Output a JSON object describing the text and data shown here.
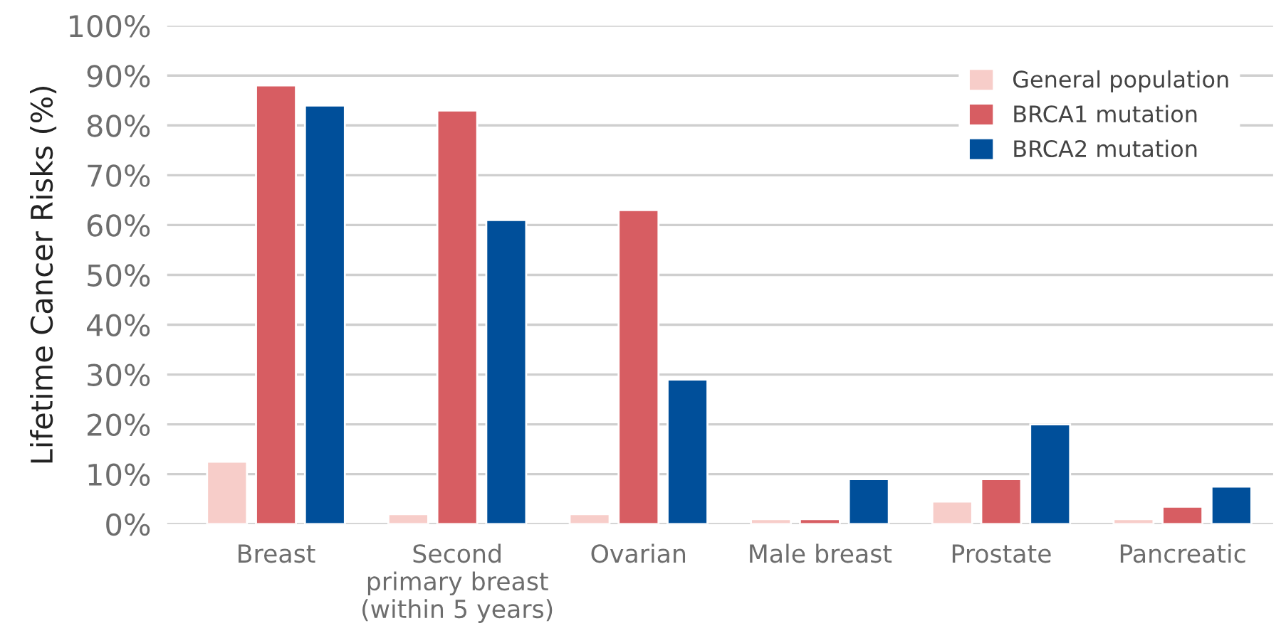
{
  "chart_data": {
    "type": "bar",
    "ylabel": "Lifetime Cancer Risks (%)",
    "categories": [
      "Breast",
      "Second\nprimary breast\n(within 5 years)",
      "Ovarian",
      "Male breast",
      "Prostate",
      "Pancreatic"
    ],
    "series": [
      {
        "name": "General population",
        "color": "#f7cdc9",
        "values": [
          12.5,
          2,
          2,
          1,
          4.5,
          1
        ]
      },
      {
        "name": "BRCA1 mutation",
        "color": "#d75d62",
        "values": [
          88,
          83,
          63,
          1,
          9,
          3.5
        ]
      },
      {
        "name": "BRCA2 mutation",
        "color": "#004f9a",
        "values": [
          84,
          61,
          29,
          9,
          20,
          7.5
        ]
      }
    ],
    "ylim": [
      0,
      100
    ],
    "yticks": [
      {
        "value": 0,
        "label": "0%"
      },
      {
        "value": 10,
        "label": "10%"
      },
      {
        "value": 20,
        "label": "20%"
      },
      {
        "value": 30,
        "label": "30%"
      },
      {
        "value": 40,
        "label": "40%"
      },
      {
        "value": 50,
        "label": "50%"
      },
      {
        "value": 60,
        "label": "60%"
      },
      {
        "value": 70,
        "label": "70%"
      },
      {
        "value": 80,
        "label": "80%"
      },
      {
        "value": 90,
        "label": "90%"
      },
      {
        "value": 100,
        "label": "100%"
      }
    ],
    "grid": "y",
    "legend": "top right"
  }
}
